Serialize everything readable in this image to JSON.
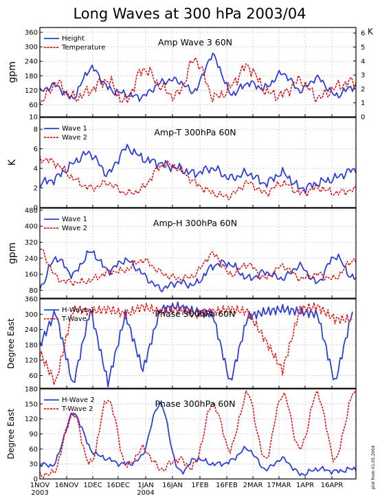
{
  "figure": {
    "title": "Long Waves at 300 hPa 2003/04",
    "credit": "plot from 01.05.2004",
    "x_ticks": [
      "1NOV",
      "16NOV",
      "1DEC",
      "16DEC",
      "1JAN",
      "16JAN",
      "1FEB",
      "16FEB",
      "2MAR",
      "17MAR",
      "1APR",
      "16APR"
    ],
    "x_years": [
      "2003",
      "2004"
    ]
  },
  "colors": {
    "series1": "#2b3fd6",
    "series2": "#e01010",
    "axis": "#000000",
    "grid": "#9a9a9a"
  },
  "chart_data": [
    {
      "type": "line",
      "title": "Amp Wave 3 60N",
      "ylabel": "gpm",
      "ylabel_right": "K",
      "ylim": [
        10,
        380
      ],
      "yticks": [
        10,
        60,
        120,
        180,
        240,
        300,
        360
      ],
      "ylim_right": [
        0,
        6.4
      ],
      "yticks_right": [
        0,
        1,
        2,
        3,
        4,
        5,
        6
      ],
      "x": [
        1,
        10,
        20,
        30,
        40,
        50,
        60,
        70,
        80,
        90,
        100,
        110,
        120,
        130,
        140,
        150,
        160,
        170,
        180
      ],
      "series": [
        {
          "name": "Height",
          "axis": "left",
          "values": [
            115,
            140,
            90,
            210,
            130,
            105,
            95,
            150,
            160,
            120,
            260,
            110,
            150,
            130,
            190,
            120,
            170,
            100,
            135
          ]
        },
        {
          "name": "Temperature",
          "axis": "right",
          "values": [
            0.9,
            2.4,
            1.4,
            1.9,
            2.6,
            1.1,
            3.4,
            2.2,
            1.6,
            4.1,
            1.5,
            2.1,
            3.6,
            1.9,
            1.6,
            2.6,
            1.4,
            2.1,
            2.5
          ]
        }
      ]
    },
    {
      "type": "line",
      "title": "Amp-T 300hPa 60N",
      "ylabel": "K",
      "ylim": [
        0,
        9.2
      ],
      "yticks": [
        0,
        2,
        4,
        6,
        8
      ],
      "x": [
        1,
        10,
        20,
        30,
        40,
        50,
        60,
        70,
        80,
        90,
        100,
        110,
        120,
        130,
        140,
        150,
        160,
        170,
        180
      ],
      "series": [
        {
          "name": "Wave 1",
          "values": [
            2.5,
            3.0,
            4.5,
            5.5,
            3.5,
            6.0,
            5.0,
            4.5,
            4.0,
            3.5,
            4.0,
            3.0,
            3.5,
            2.5,
            3.5,
            2.0,
            2.5,
            3.0,
            3.8
          ]
        },
        {
          "name": "Wave 2",
          "values": [
            5.0,
            4.5,
            3.0,
            2.0,
            2.5,
            1.5,
            2.0,
            4.2,
            4.0,
            2.5,
            1.5,
            1.2,
            2.5,
            1.5,
            2.5,
            1.5,
            2.0,
            1.5,
            1.8
          ]
        }
      ]
    },
    {
      "type": "line",
      "title": "Amp-H 300hPa 60N",
      "ylabel": "gpm",
      "ylim": [
        40,
        490
      ],
      "yticks": [
        80,
        160,
        240,
        320,
        400,
        480
      ],
      "x": [
        1,
        10,
        20,
        30,
        40,
        50,
        60,
        70,
        80,
        90,
        100,
        110,
        120,
        130,
        140,
        150,
        160,
        170,
        180
      ],
      "series": [
        {
          "name": "Wave 1",
          "values": [
            90,
            240,
            160,
            270,
            180,
            230,
            160,
            90,
            120,
            110,
            200,
            210,
            140,
            170,
            140,
            200,
            120,
            250,
            140
          ]
        },
        {
          "name": "Wave 2",
          "values": [
            290,
            150,
            120,
            130,
            170,
            180,
            230,
            170,
            140,
            160,
            260,
            160,
            210,
            140,
            200,
            140,
            160,
            140,
            230
          ]
        }
      ]
    },
    {
      "type": "line",
      "title": "Phase 300hPa 60N",
      "ylabel": "Degree East",
      "ylim": [
        10,
        360
      ],
      "yticks": [
        60,
        120,
        180,
        240,
        300,
        360
      ],
      "x": [
        1,
        10,
        20,
        30,
        40,
        50,
        60,
        70,
        80,
        90,
        100,
        110,
        120,
        130,
        140,
        150,
        160,
        170,
        180
      ],
      "series": [
        {
          "name": "H-Wave 1",
          "values": [
            180,
            310,
            20,
            320,
            30,
            300,
            80,
            320,
            330,
            310,
            300,
            30,
            290,
            310,
            320,
            310,
            300,
            30,
            310
          ]
        },
        {
          "name": "T-Wave",
          "values": [
            150,
            30,
            320,
            310,
            320,
            300,
            330,
            310,
            320,
            300,
            310,
            320,
            310,
            200,
            80,
            320,
            330,
            280,
            280
          ]
        }
      ]
    },
    {
      "type": "line",
      "title": "Phase 300hPa 60N",
      "ylabel": "Degree East",
      "ylim": [
        0,
        180
      ],
      "yticks": [
        0,
        30,
        60,
        90,
        120,
        150,
        180
      ],
      "x": [
        1,
        10,
        20,
        30,
        40,
        50,
        60,
        70,
        80,
        90,
        100,
        110,
        120,
        130,
        140,
        150,
        160,
        170,
        180
      ],
      "series": [
        {
          "name": "H-Wave 2",
          "values": [
            30,
            35,
            130,
            60,
            40,
            30,
            50,
            150,
            20,
            40,
            30,
            35,
            60,
            20,
            40,
            10,
            20,
            15,
            20
          ]
        },
        {
          "name": "T-Wave 2",
          "values": [
            10,
            20,
            130,
            30,
            160,
            30,
            60,
            20,
            40,
            30,
            150,
            60,
            170,
            40,
            170,
            60,
            170,
            40,
            170
          ]
        }
      ]
    }
  ]
}
